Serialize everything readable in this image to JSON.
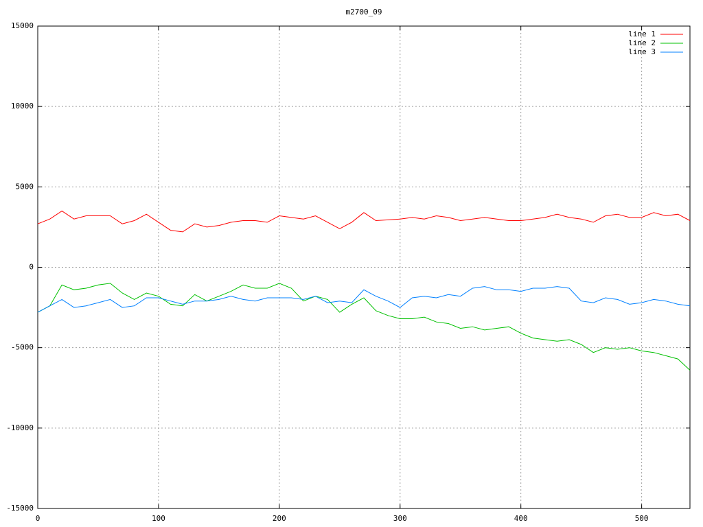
{
  "chart_data": {
    "type": "line",
    "title": "m2700_09",
    "x": [
      0,
      10,
      20,
      30,
      40,
      50,
      60,
      70,
      80,
      90,
      100,
      110,
      120,
      130,
      140,
      150,
      160,
      170,
      180,
      190,
      200,
      210,
      220,
      230,
      240,
      250,
      260,
      270,
      280,
      290,
      300,
      310,
      320,
      330,
      340,
      350,
      360,
      370,
      380,
      390,
      400,
      410,
      420,
      430,
      440,
      450,
      460,
      470,
      480,
      490,
      500,
      510,
      520,
      530,
      540
    ],
    "series": [
      {
        "name": "line 1",
        "color": "#ff0000",
        "values": [
          2700,
          3000,
          3500,
          3000,
          3200,
          3200,
          3200,
          2700,
          2900,
          3300,
          2800,
          2300,
          2200,
          2700,
          2500,
          2600,
          2800,
          2900,
          2900,
          2800,
          3200,
          3100,
          3000,
          3200,
          2800,
          2400,
          2800,
          3400,
          2900,
          2950,
          3000,
          3100,
          3000,
          3200,
          3100,
          2900,
          3000,
          3100,
          3000,
          2900,
          2900,
          3000,
          3100,
          3300,
          3100,
          3000,
          2800,
          3200,
          3300,
          3100,
          3100,
          3400,
          3200,
          3300,
          2900
        ]
      },
      {
        "name": "line 2",
        "color": "#00c000",
        "values": [
          -2800,
          -2400,
          -1100,
          -1400,
          -1300,
          -1100,
          -1000,
          -1600,
          -2000,
          -1600,
          -1800,
          -2300,
          -2400,
          -1700,
          -2100,
          -1800,
          -1500,
          -1100,
          -1300,
          -1300,
          -1000,
          -1300,
          -2100,
          -1800,
          -2000,
          -2800,
          -2300,
          -1900,
          -2700,
          -3000,
          -3200,
          -3200,
          -3100,
          -3400,
          -3500,
          -3800,
          -3700,
          -3900,
          -3800,
          -3700,
          -4100,
          -4400,
          -4500,
          -4600,
          -4500,
          -4800,
          -5300,
          -5000,
          -5100,
          -5000,
          -5200,
          -5300,
          -5500,
          -5700,
          -6400
        ]
      },
      {
        "name": "line 3",
        "color": "#0080ff",
        "values": [
          -2800,
          -2400,
          -2000,
          -2500,
          -2400,
          -2200,
          -2000,
          -2500,
          -2400,
          -1900,
          -1900,
          -2100,
          -2300,
          -2100,
          -2100,
          -2000,
          -1800,
          -2000,
          -2100,
          -1900,
          -1900,
          -1900,
          -2000,
          -1800,
          -2200,
          -2100,
          -2200,
          -1400,
          -1800,
          -2100,
          -2500,
          -1900,
          -1800,
          -1900,
          -1700,
          -1800,
          -1300,
          -1200,
          -1400,
          -1400,
          -1500,
          -1300,
          -1300,
          -1200,
          -1300,
          -2100,
          -2200,
          -1900,
          -2000,
          -2300,
          -2200,
          -2000,
          -2100,
          -2300,
          -2400
        ]
      }
    ],
    "xlim": [
      0,
      540
    ],
    "xticks": [
      0,
      100,
      200,
      300,
      400,
      500
    ],
    "ylim": [
      -15000,
      15000
    ],
    "yticks": [
      -15000,
      -10000,
      -5000,
      0,
      5000,
      10000,
      15000
    ],
    "grid": true,
    "legend": "top-right"
  }
}
